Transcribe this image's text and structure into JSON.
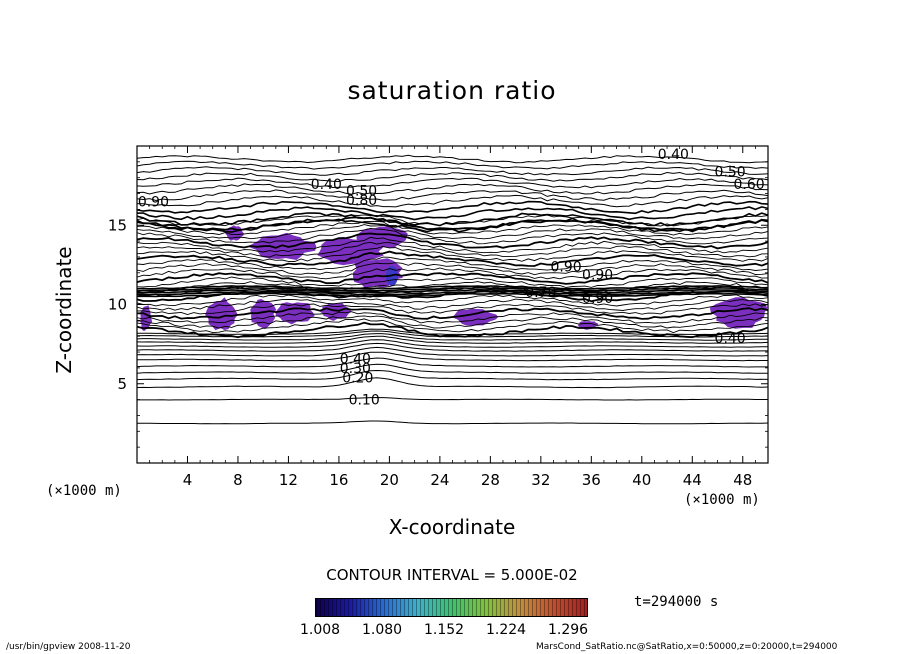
{
  "chart_data": {
    "type": "contour",
    "title": "saturation ratio",
    "xlabel": "X-coordinate",
    "ylabel": "Z-coordinate",
    "x_unit_left": "(×1000 m)",
    "x_unit_right": "(×1000 m)",
    "xlim": [
      0,
      50
    ],
    "ylim": [
      0,
      20
    ],
    "x_ticks": [
      4,
      8,
      12,
      16,
      20,
      24,
      28,
      32,
      36,
      40,
      44,
      48
    ],
    "y_ticks": [
      5,
      10,
      15
    ],
    "contour_labels": [
      {
        "text": "0.10",
        "x": 18,
        "z": 4.0
      },
      {
        "text": "0.20",
        "x": 17.5,
        "z": 5.4
      },
      {
        "text": "0.30",
        "x": 17.3,
        "z": 6.0
      },
      {
        "text": "0.40",
        "x": 17.3,
        "z": 6.6
      },
      {
        "text": "0.40",
        "x": 42.5,
        "z": 19.5
      },
      {
        "text": "0.40",
        "x": 15,
        "z": 17.6
      },
      {
        "text": "0.50",
        "x": 47,
        "z": 18.4
      },
      {
        "text": "0.60",
        "x": 48.5,
        "z": 17.6
      },
      {
        "text": "0.50",
        "x": 17.8,
        "z": 17.2
      },
      {
        "text": "0.80",
        "x": 17.8,
        "z": 16.6
      },
      {
        "text": "0.90",
        "x": 1.3,
        "z": 16.5
      },
      {
        "text": "0.90",
        "x": 34,
        "z": 12.4
      },
      {
        "text": "0.90",
        "x": 36.5,
        "z": 11.9
      },
      {
        "text": "0.70",
        "x": 32,
        "z": 10.8
      },
      {
        "text": "0.90",
        "x": 36.5,
        "z": 10.4
      },
      {
        "text": "0.40",
        "x": 47,
        "z": 7.9
      }
    ],
    "filled_levels": {
      "min": 1.008,
      "max": 1.296,
      "colorbar_ticks": [
        "1.008",
        "1.080",
        "1.152",
        "1.224",
        "1.296"
      ]
    },
    "supersaturated_regions": [
      {
        "x": [
          7.0,
          8.5
        ],
        "z": [
          14.0,
          15.0
        ]
      },
      {
        "x": [
          9.0,
          14.0
        ],
        "z": [
          12.8,
          14.5
        ]
      },
      {
        "x": [
          14.0,
          19.5
        ],
        "z": [
          12.5,
          14.2
        ]
      },
      {
        "x": [
          17.5,
          21.5
        ],
        "z": [
          13.5,
          15.0
        ]
      },
      {
        "x": [
          17.0,
          21.0
        ],
        "z": [
          11.0,
          13.0
        ]
      },
      {
        "x": [
          0.2,
          1.2
        ],
        "z": [
          8.3,
          10.0
        ]
      },
      {
        "x": [
          5.5,
          8.0
        ],
        "z": [
          8.3,
          10.4
        ]
      },
      {
        "x": [
          9.0,
          11.0
        ],
        "z": [
          8.5,
          10.3
        ]
      },
      {
        "x": [
          11.0,
          14.0
        ],
        "z": [
          8.8,
          10.2
        ]
      },
      {
        "x": [
          14.5,
          17.0
        ],
        "z": [
          9.0,
          10.1
        ]
      },
      {
        "x": [
          25.0,
          28.5
        ],
        "z": [
          8.6,
          9.8
        ]
      },
      {
        "x": [
          35.0,
          36.5
        ],
        "z": [
          8.4,
          9.0
        ]
      },
      {
        "x": [
          45.5,
          50.0
        ],
        "z": [
          8.5,
          10.5
        ]
      }
    ]
  },
  "contour_interval": "CONTOUR INTERVAL = 5.000E-02",
  "time_label": "t=294000 s",
  "footer": {
    "left": "/usr/bin/gpview   2008-11-20",
    "right": "MarsCond_SatRatio.nc@SatRatio,x=0:50000,z=0:20000,t=294000"
  },
  "colors": {
    "fill": "#7b2fbf",
    "fill_core": "#3b38c8",
    "line": "#000000",
    "colorbar": [
      "#10004a",
      "#1a1aa0",
      "#2a6ad0",
      "#40b0c8",
      "#40c070",
      "#80c040",
      "#c09040",
      "#c05030",
      "#a02020"
    ]
  }
}
